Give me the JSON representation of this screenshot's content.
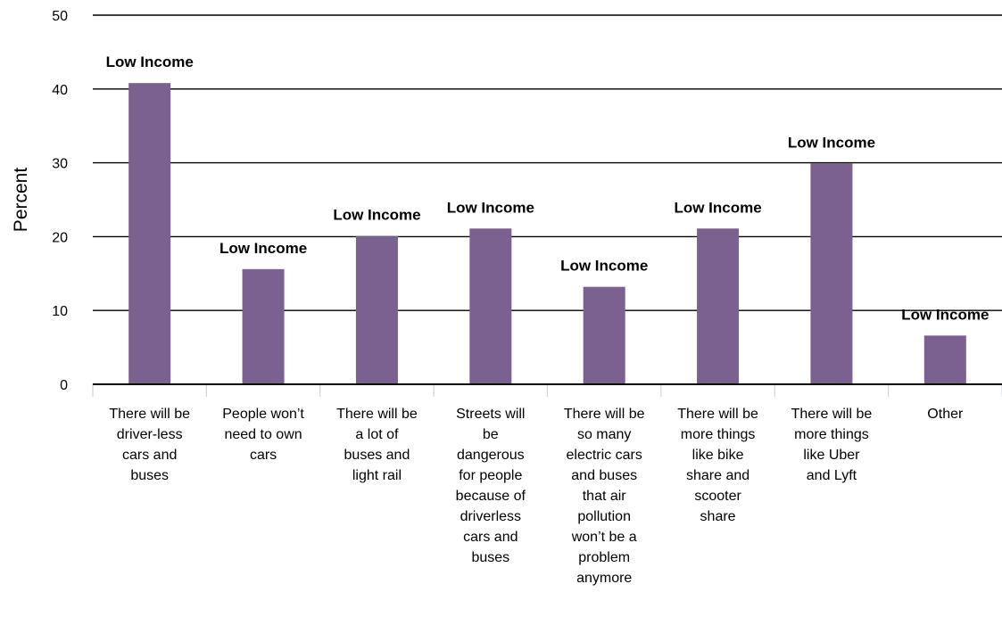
{
  "chart_data": {
    "type": "bar",
    "categories": [
      [
        "There will be",
        "driver-less",
        "cars and",
        "buses"
      ],
      [
        "People won’t",
        "need to own",
        "cars"
      ],
      [
        "There will be",
        "a lot of",
        "buses and",
        "light rail"
      ],
      [
        "Streets will",
        "be",
        "dangerous",
        "for people",
        "because of",
        "driverless",
        "cars and",
        "buses"
      ],
      [
        "There will be",
        "so many",
        "electric cars",
        "and buses",
        "that air",
        "pollution",
        "won’t be a",
        "problem",
        "anymore"
      ],
      [
        "There will be",
        "more things",
        "like bike",
        "share and",
        "scooter",
        "share"
      ],
      [
        "There will be",
        "more things",
        "like Uber",
        "and Lyft"
      ],
      [
        "Other"
      ]
    ],
    "series": [
      {
        "values": [
          40.8,
          15.6,
          20.1,
          21.1,
          13.2,
          21.1,
          29.9,
          6.6
        ],
        "labels": [
          "Low Income",
          "Low Income",
          "Low Income",
          "Low Income",
          "Low Income",
          "Low Income",
          "Low Income",
          "Low Income"
        ],
        "color": "#7b6190"
      }
    ],
    "ylabel": "Percent",
    "ylim": [
      0,
      50
    ],
    "yticks": [
      0,
      10,
      20,
      30,
      40,
      50
    ],
    "grid": true
  }
}
